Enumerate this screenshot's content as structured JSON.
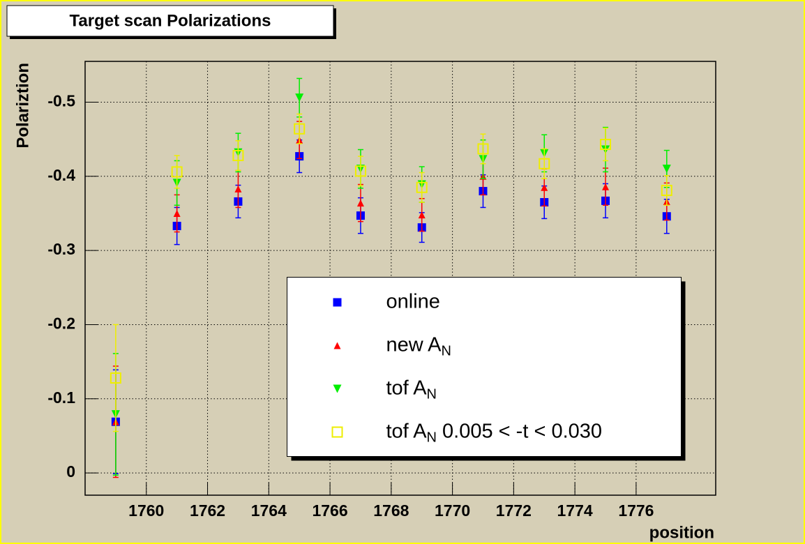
{
  "chart_data": {
    "type": "scatter",
    "title": "Target scan Polarizations",
    "x_label": "position",
    "y_label": "Polariztion",
    "x": [
      1759,
      1761,
      1763,
      1765,
      1767,
      1769,
      1771,
      1773,
      1775,
      1777
    ],
    "xlim": [
      1758,
      1778.6
    ],
    "xticks": [
      1760,
      1762,
      1764,
      1766,
      1768,
      1770,
      1772,
      1774,
      1776
    ],
    "ylim": [
      0.03,
      -0.555
    ],
    "yticks": [
      0,
      -0.1,
      -0.2,
      -0.3,
      -0.4,
      -0.5
    ],
    "grid": true,
    "legend": "center",
    "series": [
      {
        "name": [
          "online"
        ],
        "color": "#0000ff",
        "marker": "square",
        "values": [
          -0.069,
          -0.333,
          -0.366,
          -0.427,
          -0.347,
          -0.331,
          -0.38,
          -0.365,
          -0.367,
          -0.346
        ],
        "errors": [
          0.07,
          0.025,
          0.022,
          0.022,
          0.024,
          0.02,
          0.022,
          0.022,
          0.023,
          0.023
        ]
      },
      {
        "name": [
          "new A",
          "N"
        ],
        "color": "#ff0000",
        "marker": "triangle-up",
        "values": [
          -0.069,
          -0.35,
          -0.383,
          -0.449,
          -0.364,
          -0.348,
          -0.4,
          -0.385,
          -0.386,
          -0.366
        ],
        "errors": [
          0.075,
          0.025,
          0.025,
          0.025,
          0.025,
          0.022,
          0.025,
          0.025,
          0.025,
          0.025
        ]
      },
      {
        "name": [
          "tof A",
          "N"
        ],
        "color": "#00ee00",
        "marker": "triangle-down",
        "values": [
          -0.079,
          -0.391,
          -0.432,
          -0.506,
          -0.41,
          -0.389,
          -0.423,
          -0.431,
          -0.436,
          -0.41
        ],
        "errors": [
          0.082,
          0.03,
          0.026,
          0.026,
          0.026,
          0.024,
          0.026,
          0.025,
          0.03,
          0.025
        ]
      },
      {
        "name": [
          "tof A",
          "N",
          " 0.005 < -t < 0.030"
        ],
        "color": "#eeee00",
        "marker": "open-square",
        "values": [
          -0.128,
          -0.406,
          -0.428,
          -0.464,
          -0.407,
          -0.385,
          -0.437,
          -0.417,
          -0.443,
          -0.381
        ],
        "errors": [
          0.072,
          0.022,
          0.02,
          0.02,
          0.02,
          0.02,
          0.02,
          0.02,
          0.022,
          0.02
        ]
      }
    ]
  }
}
